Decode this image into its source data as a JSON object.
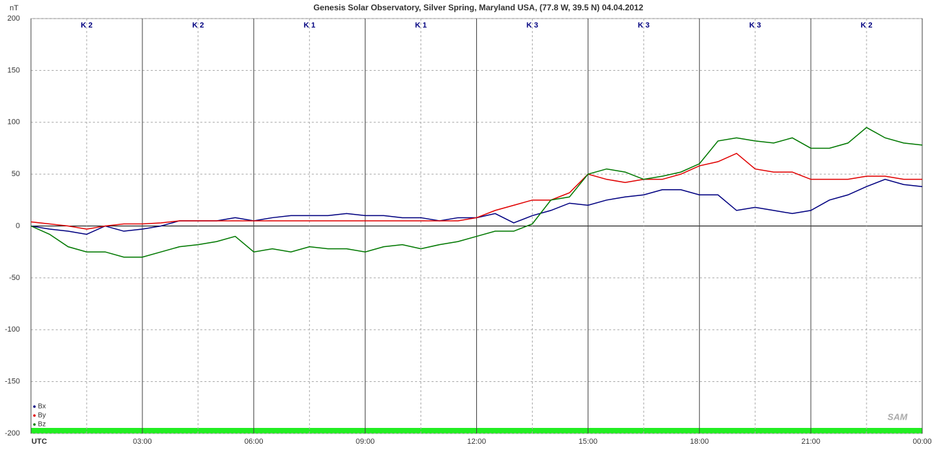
{
  "chart_data": {
    "type": "line",
    "title": "Genesis Solar Observatory, Silver Spring, Maryland USA, (77.8 W, 39.5 N)  04.04.2012",
    "y_label": "nT",
    "k_labels": [
      "K 2",
      "K 2",
      "K 1",
      "K 1",
      "K 3",
      "K 3",
      "K 3",
      "K 2"
    ],
    "logo": "SAM",
    "x": [
      0,
      0.5,
      1,
      1.5,
      2,
      2.5,
      3,
      3.5,
      4,
      4.5,
      5,
      5.5,
      6,
      6.5,
      7,
      7.5,
      8,
      8.5,
      9,
      9.5,
      10,
      10.5,
      11,
      11.5,
      12,
      12.5,
      13,
      13.5,
      14,
      14.5,
      15,
      15.5,
      16,
      16.5,
      17,
      17.5,
      18,
      18.5,
      19,
      19.5,
      20,
      20.5,
      21,
      21.5,
      22,
      22.5,
      23,
      23.5,
      24
    ],
    "series": [
      {
        "name": "Bx",
        "color": "#000080",
        "values": [
          0,
          -3,
          -5,
          -8,
          0,
          -5,
          -3,
          0,
          5,
          5,
          5,
          8,
          5,
          8,
          10,
          10,
          10,
          12,
          10,
          10,
          8,
          8,
          5,
          8,
          8,
          12,
          3,
          10,
          15,
          22,
          20,
          25,
          28,
          30,
          35,
          35,
          30,
          30,
          15,
          18,
          15,
          12,
          15,
          25,
          30,
          38,
          45,
          40,
          38
        ]
      },
      {
        "name": "By",
        "color": "#e00000",
        "values": [
          4,
          2,
          0,
          -3,
          0,
          2,
          2,
          3,
          5,
          5,
          5,
          5,
          5,
          5,
          5,
          5,
          5,
          5,
          5,
          5,
          5,
          5,
          5,
          5,
          8,
          15,
          20,
          25,
          25,
          32,
          50,
          45,
          42,
          45,
          45,
          50,
          58,
          62,
          70,
          55,
          52,
          52,
          45,
          45,
          45,
          48,
          48,
          45,
          45
        ]
      },
      {
        "name": "Bz",
        "color": "#007800",
        "values": [
          0,
          -8,
          -20,
          -25,
          -25,
          -30,
          -30,
          -25,
          -20,
          -18,
          -15,
          -10,
          -25,
          -22,
          -25,
          -20,
          -22,
          -22,
          -25,
          -20,
          -18,
          -22,
          -18,
          -15,
          -10,
          -5,
          -5,
          2,
          25,
          28,
          50,
          55,
          52,
          45,
          48,
          52,
          60,
          82,
          85,
          82,
          80,
          85,
          75,
          75,
          80,
          95,
          85,
          80,
          78
        ]
      }
    ],
    "xlim": [
      0,
      24
    ],
    "xticks": [
      {
        "value": 0,
        "label": "UTC"
      },
      {
        "value": 3,
        "label": "03:00"
      },
      {
        "value": 6,
        "label": "06:00"
      },
      {
        "value": 9,
        "label": "09:00"
      },
      {
        "value": 12,
        "label": "12:00"
      },
      {
        "value": 15,
        "label": "15:00"
      },
      {
        "value": 18,
        "label": "18:00"
      },
      {
        "value": 21,
        "label": "21:00"
      },
      {
        "value": 24,
        "label": "00:00"
      }
    ],
    "ylim": [
      -200,
      200
    ],
    "yticks": [
      -200,
      -150,
      -100,
      -50,
      0,
      50,
      100,
      150,
      200
    ],
    "grid": true,
    "legend": "lower left"
  }
}
